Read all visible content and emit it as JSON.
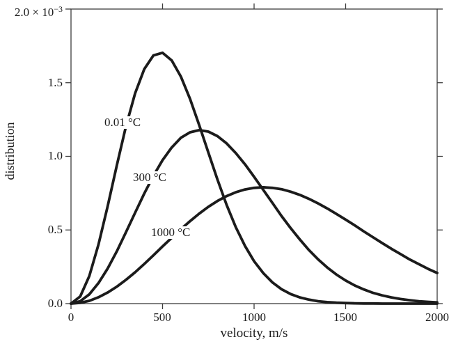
{
  "figure": {
    "description": "Maxwell-Boltzmann molecular speed distribution at three temperatures",
    "colors": {
      "background": "#ffffff",
      "ink": "#1b1b1b",
      "axis": "#3c3c3c"
    }
  },
  "chart_data": {
    "type": "line",
    "title": "",
    "xlabel": "velocity, m/s",
    "ylabel": "distribution",
    "xlim": [
      0,
      2000
    ],
    "ylim": [
      0,
      2.0
    ],
    "y_unit_scale": "×10⁻³",
    "grid": false,
    "legend_position": "inline curve labels",
    "x_ticks": [
      0,
      500,
      1000,
      1500,
      2000
    ],
    "x_tick_labels": [
      "0",
      "500",
      "1000",
      "1500",
      "2000"
    ],
    "x_ticks_top": [
      500,
      1000,
      1500
    ],
    "y_ticks": [
      0,
      0.5,
      1.0,
      1.5,
      2.0
    ],
    "y_tick_labels": [
      "0.0",
      "0.5",
      "1.0",
      "1.5"
    ],
    "y_top_tick_label_base": "2.0 × 10",
    "y_top_tick_label_exponent": "−3",
    "x": [
      0,
      50,
      100,
      150,
      200,
      250,
      300,
      350,
      400,
      450,
      500,
      550,
      600,
      650,
      700,
      750,
      800,
      850,
      900,
      950,
      1000,
      1050,
      1100,
      1150,
      1200,
      1250,
      1300,
      1350,
      1400,
      1450,
      1500,
      1550,
      1600,
      1650,
      1700,
      1750,
      1800,
      1850,
      1900,
      1950,
      2000
    ],
    "series": [
      {
        "id": "curve-0p01c",
        "name": "0.01 °C",
        "label": "0.01 °C",
        "most_probable_speed_mps": 490,
        "peak_value_e-3": 1.7,
        "values": [
          0.0,
          0.048,
          0.187,
          0.4,
          0.66,
          0.938,
          1.203,
          1.428,
          1.592,
          1.685,
          1.703,
          1.651,
          1.542,
          1.39,
          1.213,
          1.026,
          0.842,
          0.671,
          0.519,
          0.392,
          0.288,
          0.207,
          0.144,
          0.098,
          0.065,
          0.042,
          0.027,
          0.016,
          0.01,
          0.006,
          0.004,
          0.002,
          0.001,
          0.001,
          0.0,
          0.0,
          0.0,
          0.0,
          0.0,
          0.0,
          0.0
        ]
      },
      {
        "id": "curve-300c",
        "name": "300 °C",
        "label": "300 °C",
        "most_probable_speed_mps": 705,
        "peak_value_e-3": 1.18,
        "values": [
          0.0,
          0.016,
          0.063,
          0.139,
          0.238,
          0.355,
          0.484,
          0.617,
          0.747,
          0.868,
          0.974,
          1.06,
          1.126,
          1.163,
          1.178,
          1.168,
          1.137,
          1.088,
          1.022,
          0.946,
          0.861,
          0.772,
          0.684,
          0.595,
          0.512,
          0.435,
          0.363,
          0.3,
          0.245,
          0.197,
          0.157,
          0.123,
          0.096,
          0.073,
          0.056,
          0.042,
          0.031,
          0.023,
          0.016,
          0.012,
          0.008
        ]
      },
      {
        "id": "curve-1000c",
        "name": "1000 °C",
        "label": "1000 °C",
        "most_probable_speed_mps": 1050,
        "peak_value_e-3": 0.79,
        "values": [
          0.0,
          0.005,
          0.019,
          0.043,
          0.075,
          0.115,
          0.161,
          0.213,
          0.269,
          0.328,
          0.388,
          0.447,
          0.505,
          0.56,
          0.611,
          0.657,
          0.697,
          0.73,
          0.756,
          0.775,
          0.786,
          0.79,
          0.786,
          0.777,
          0.76,
          0.738,
          0.711,
          0.68,
          0.646,
          0.609,
          0.57,
          0.531,
          0.49,
          0.45,
          0.411,
          0.372,
          0.336,
          0.3,
          0.268,
          0.236,
          0.208
        ]
      }
    ]
  }
}
